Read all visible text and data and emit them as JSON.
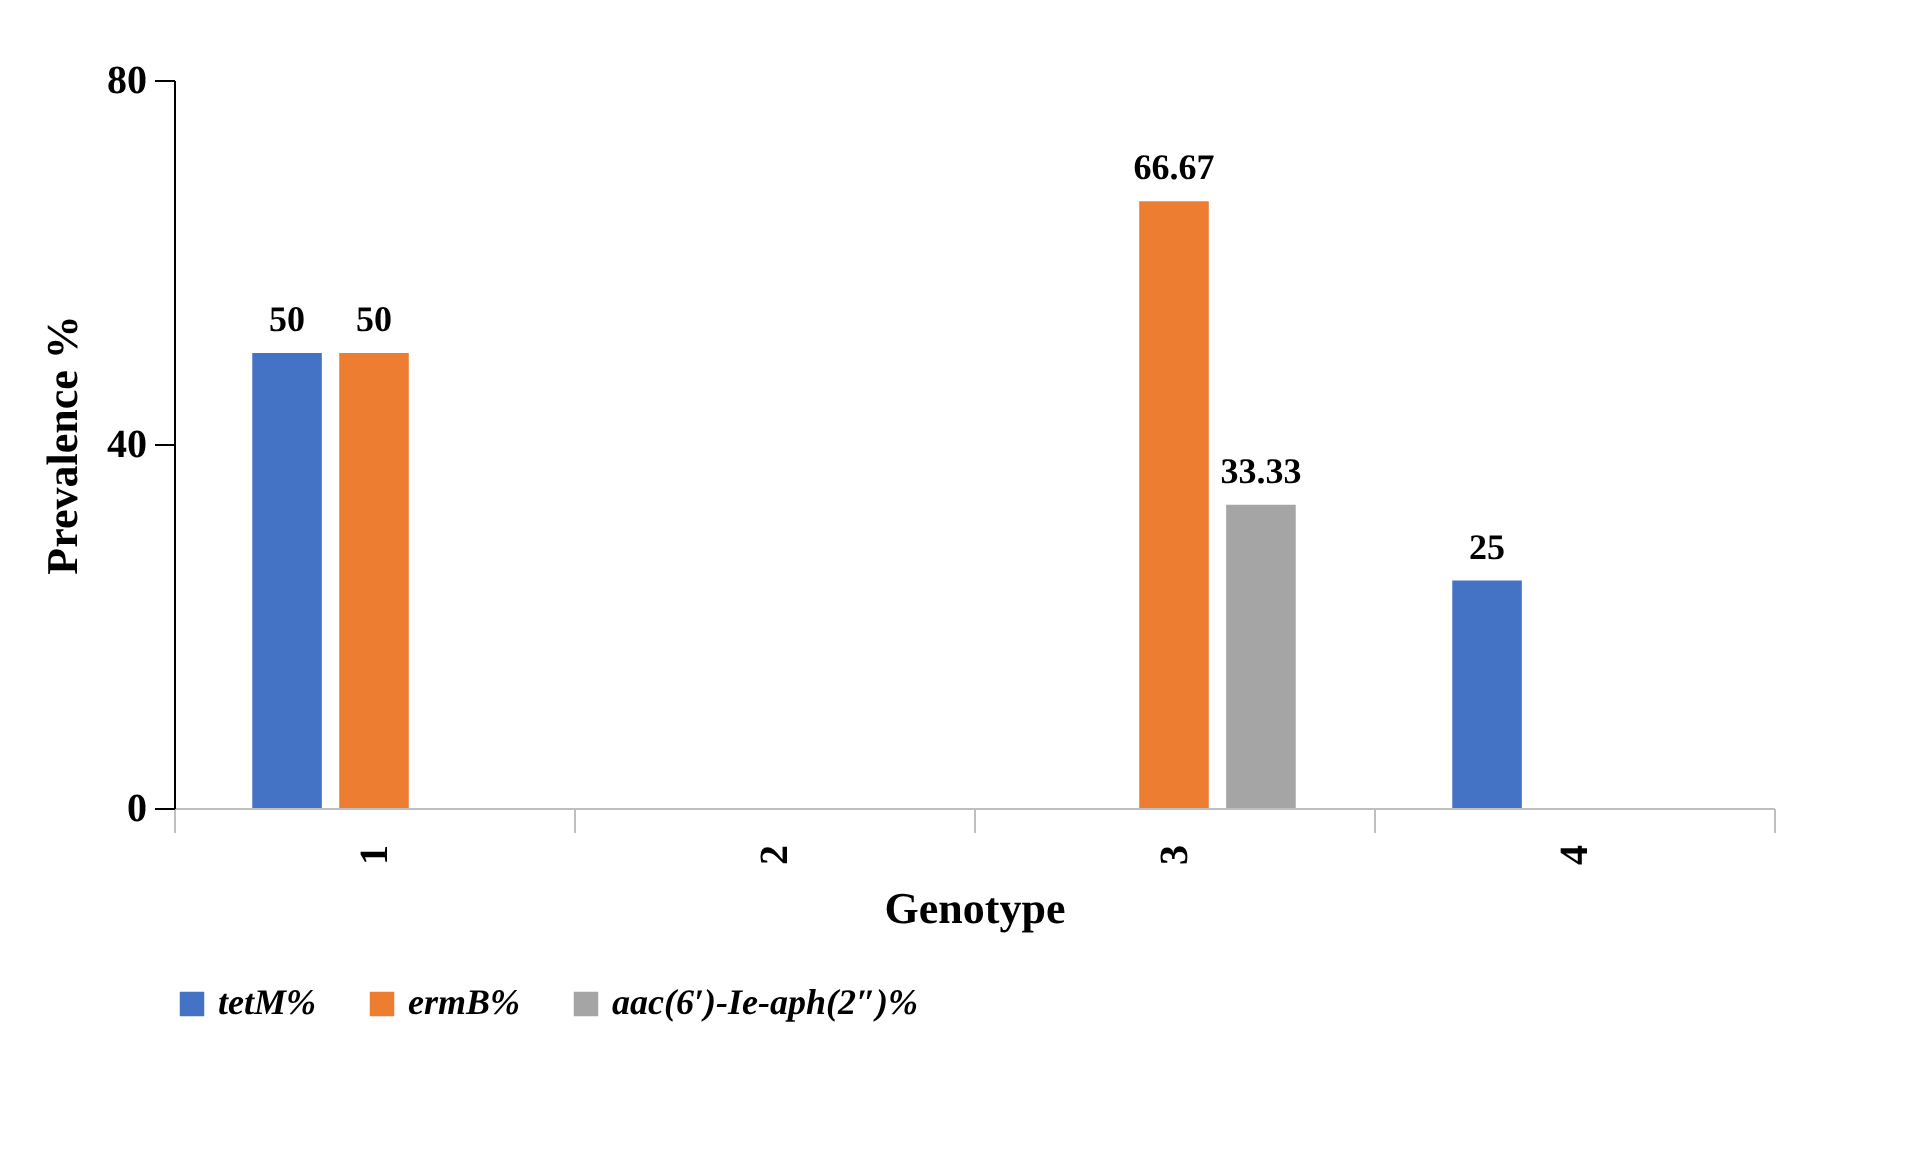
{
  "chart_data": {
    "type": "bar",
    "xlabel": "Genotype",
    "ylabel": "Prevalence %",
    "categories": [
      "1",
      "2",
      "3",
      "4"
    ],
    "ylim": [
      0,
      80
    ],
    "yticks": [
      0,
      40,
      80
    ],
    "grid": false,
    "legend": "bottom",
    "series": [
      {
        "name": "tetM%",
        "color": "#4472c4",
        "values": [
          50,
          0,
          0,
          25
        ],
        "value_labels": [
          "50",
          null,
          null,
          "25"
        ]
      },
      {
        "name": "ermB%",
        "color": "#ed7d31",
        "values": [
          50,
          0,
          66.67,
          0
        ],
        "value_labels": [
          "50",
          null,
          "66.67",
          null
        ]
      },
      {
        "name": "aac(6′)-Ie-aph(2″)%",
        "color": "#a5a5a5",
        "values": [
          0,
          0,
          33.33,
          0
        ],
        "value_labels": [
          null,
          null,
          "33.33",
          null
        ]
      }
    ]
  }
}
